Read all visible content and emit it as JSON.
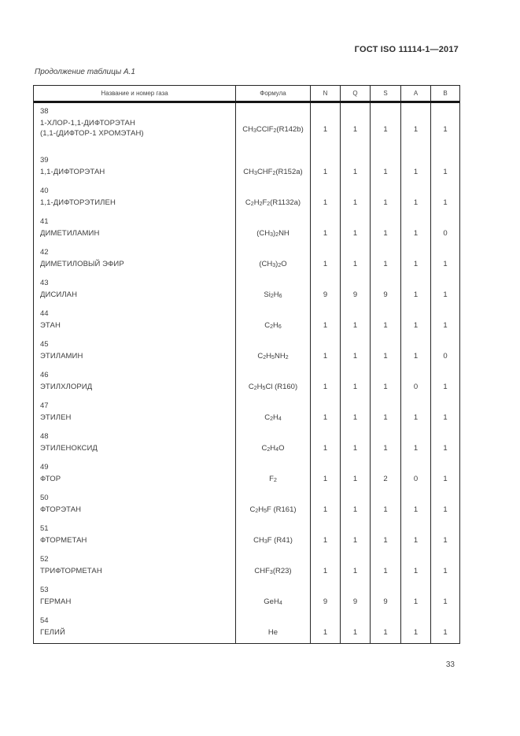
{
  "page": {
    "running_header": "ГОСТ ISO 11114-1—2017",
    "table_caption": "Продолжение таблицы А.1",
    "page_number": "33"
  },
  "colors": {
    "ink": "#3a3a3a",
    "paper": "#ffffff",
    "border": "#262626"
  },
  "table": {
    "columns": [
      "Название и номер газа",
      "Формула",
      "N",
      "Q",
      "S",
      "A",
      "B"
    ],
    "rows": [
      {
        "num": "38",
        "name": "1-ХЛОР-1,1-ДИФТОРЭТАН",
        "name2": "(1,1-(ДИФТОР-1 ХРОМЭТАН)",
        "formula": "CH~3~CClF~2~ (R142b)",
        "values": [
          "1",
          "1",
          "1",
          "1",
          "1"
        ]
      },
      {
        "num": "39",
        "name": "1,1-ДИФТОРЭТАН",
        "formula": "CH~3~CHF~2~ (R152a)",
        "values": [
          "1",
          "1",
          "1",
          "1",
          "1"
        ]
      },
      {
        "num": "40",
        "name": "1,1-ДИФТОРЭТИЛЕН",
        "formula": "C~2~H~2~F~2~ (R1132a)",
        "values": [
          "1",
          "1",
          "1",
          "1",
          "1"
        ]
      },
      {
        "num": "41",
        "name": "ДИМЕТИЛАМИН",
        "formula": "(CH~3~)~2~NH",
        "values": [
          "1",
          "1",
          "1",
          "1",
          "0"
        ]
      },
      {
        "num": "42",
        "name": "ДИМЕТИЛОВЫЙ ЭФИР",
        "formula": "(CH~3~)~2~O",
        "values": [
          "1",
          "1",
          "1",
          "1",
          "1"
        ]
      },
      {
        "num": "43",
        "name": "ДИСИЛАН",
        "formula": "Si~2~H~6~",
        "values": [
          "9",
          "9",
          "9",
          "1",
          "1"
        ]
      },
      {
        "num": "44",
        "name": "ЭТАН",
        "formula": "C~2~H~6~",
        "values": [
          "1",
          "1",
          "1",
          "1",
          "1"
        ]
      },
      {
        "num": "45",
        "name": "ЭТИЛАМИН",
        "formula": "C~2~H~5~NH~2~",
        "values": [
          "1",
          "1",
          "1",
          "1",
          "0"
        ]
      },
      {
        "num": "46",
        "name": "ЭТИЛХЛОРИД",
        "formula": "C~2~H~5~Cl (R160)",
        "values": [
          "1",
          "1",
          "1",
          "0",
          "1"
        ]
      },
      {
        "num": "47",
        "name": "ЭТИЛЕН",
        "formula": "C~2~H~4~",
        "values": [
          "1",
          "1",
          "1",
          "1",
          "1"
        ]
      },
      {
        "num": "48",
        "name": "ЭТИЛЕНОКСИД",
        "formula": "C~2~H~4~O",
        "values": [
          "1",
          "1",
          "1",
          "1",
          "1"
        ]
      },
      {
        "num": "49",
        "name": "ФТОР",
        "formula": "F~2~",
        "values": [
          "1",
          "1",
          "2",
          "0",
          "1"
        ]
      },
      {
        "num": "50",
        "name": "ФТОРЭТАН",
        "formula": "C~2~H~5~F (R161)",
        "values": [
          "1",
          "1",
          "1",
          "1",
          "1"
        ]
      },
      {
        "num": "51",
        "name": "ФТОРМЕТАН",
        "formula": "CH~3~F (R41)",
        "values": [
          "1",
          "1",
          "1",
          "1",
          "1"
        ]
      },
      {
        "num": "52",
        "name": "ТРИФТОРМЕТАН",
        "formula": "CHF~3~ (R23)",
        "values": [
          "1",
          "1",
          "1",
          "1",
          "1"
        ]
      },
      {
        "num": "53",
        "name": "ГЕРМАН",
        "formula": "GeH~4~",
        "values": [
          "9",
          "9",
          "9",
          "1",
          "1"
        ]
      },
      {
        "num": "54",
        "name": "ГЕЛИЙ",
        "formula": "He",
        "values": [
          "1",
          "1",
          "1",
          "1",
          "1"
        ]
      }
    ]
  }
}
